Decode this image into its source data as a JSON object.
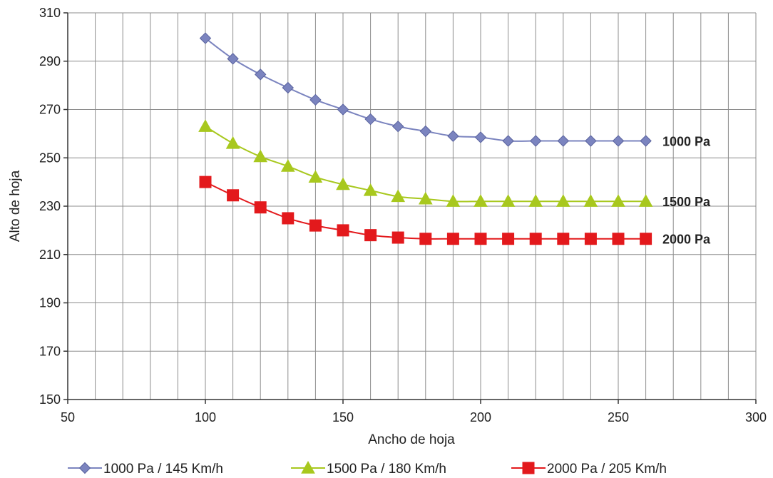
{
  "chart_data": {
    "type": "line",
    "title": "",
    "xlabel": "Ancho de hoja",
    "ylabel": "Alto de hoja",
    "xlim": [
      50,
      300
    ],
    "ylim": [
      150,
      310
    ],
    "x_major_ticks": [
      50,
      100,
      150,
      200,
      250,
      300
    ],
    "y_major_ticks": [
      150,
      170,
      190,
      210,
      230,
      250,
      270,
      290,
      310
    ],
    "x_grid_step": 10,
    "y_grid_step": 20,
    "grid": true,
    "legend_position": "bottom",
    "x": [
      100,
      110,
      120,
      130,
      140,
      150,
      160,
      170,
      180,
      190,
      200,
      210,
      220,
      230,
      240,
      250,
      260
    ],
    "series": [
      {
        "name": "1000 Pa / 145 Km/h",
        "end_label": "1000 Pa",
        "color": "#7b84bf",
        "marker": "diamond",
        "values": [
          299.5,
          291,
          284.5,
          279,
          274,
          270,
          266,
          263,
          261,
          259,
          258.5,
          257,
          257,
          257,
          257,
          257,
          257
        ]
      },
      {
        "name": "1500 Pa / 180 Km/h",
        "end_label": "1500 Pa",
        "color": "#a8c81e",
        "marker": "triangle",
        "values": [
          263,
          256,
          250.5,
          246.5,
          242,
          239,
          236.5,
          234,
          233,
          232,
          232,
          232,
          232,
          232,
          232,
          232,
          232
        ]
      },
      {
        "name": "2000 Pa / 205 Km/h",
        "end_label": "2000 Pa",
        "color": "#e3191c",
        "marker": "square",
        "values": [
          240,
          234.5,
          229.5,
          225,
          222,
          220,
          218,
          217,
          216.5,
          216.5,
          216.5,
          216.5,
          216.5,
          216.5,
          216.5,
          216.5,
          216.5
        ]
      }
    ]
  }
}
